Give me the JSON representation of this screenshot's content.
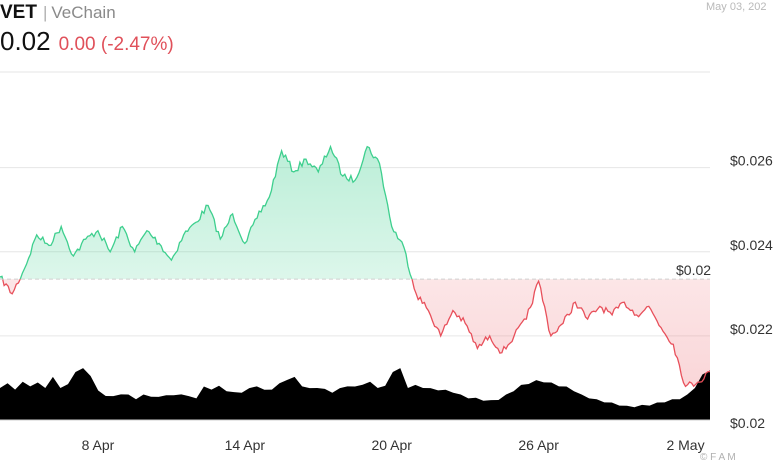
{
  "header": {
    "ticker": "VET",
    "separator": "|",
    "name": "VeChain",
    "price": "0.02",
    "change": "0.00 (-2.47%)",
    "date": "May 03, 202",
    "watermark": "© F A M"
  },
  "colors": {
    "up_line": "#3ecf8e",
    "up_fill": "#3ecf8e",
    "down_line": "#e8505b",
    "down_fill": "#f08a90",
    "volume": "#000000",
    "grid": "#e6e6e6",
    "baseline": "#cfcfcf",
    "axis_text": "#333333"
  },
  "chart_data": {
    "type": "area",
    "title": "",
    "xlabel": "",
    "ylabel": "",
    "x_ticks": [
      "8 Apr",
      "14 Apr",
      "20 Apr",
      "26 Apr",
      "2 May"
    ],
    "y_ticks": [
      "$0.026",
      "$0.024",
      "$0.022",
      "$0.02"
    ],
    "ylim": [
      0.02,
      0.0268
    ],
    "reference_line": {
      "label": "$0.02",
      "value": 0.02335
    },
    "x_range": [
      "2024-04-04",
      "2024-05-03"
    ],
    "series": [
      {
        "values": [
          [
            "2024-04-04",
            0.0234
          ],
          [
            "2024-04-04T12:00",
            0.023
          ],
          [
            "2024-04-05",
            0.0236
          ],
          [
            "2024-04-05T12:00",
            0.0244
          ],
          [
            "2024-04-06",
            0.02415
          ],
          [
            "2024-04-06T12:00",
            0.0246
          ],
          [
            "2024-04-07",
            0.0239
          ],
          [
            "2024-04-07T12:00",
            0.0243
          ],
          [
            "2024-04-08",
            0.0245
          ],
          [
            "2024-04-08T12:00",
            0.024
          ],
          [
            "2024-04-09",
            0.0246
          ],
          [
            "2024-04-09T12:00",
            0.024
          ],
          [
            "2024-04-10",
            0.0245
          ],
          [
            "2024-04-10T12:00",
            0.0242
          ],
          [
            "2024-04-11",
            0.0238
          ],
          [
            "2024-04-11T12:00",
            0.0244
          ],
          [
            "2024-04-12",
            0.0247
          ],
          [
            "2024-04-12T12:00",
            0.0251
          ],
          [
            "2024-04-13",
            0.0243
          ],
          [
            "2024-04-13T12:00",
            0.0249
          ],
          [
            "2024-04-14",
            0.0242
          ],
          [
            "2024-04-14T12:00",
            0.0248
          ],
          [
            "2024-04-15",
            0.0253
          ],
          [
            "2024-04-15T12:00",
            0.0264
          ],
          [
            "2024-04-16",
            0.0259
          ],
          [
            "2024-04-16T12:00",
            0.0262
          ],
          [
            "2024-04-17",
            0.0259
          ],
          [
            "2024-04-17T12:00",
            0.0265
          ],
          [
            "2024-04-18",
            0.0258
          ],
          [
            "2024-04-18T12:00",
            0.0257
          ],
          [
            "2024-04-19",
            0.0265
          ],
          [
            "2024-04-19T12:00",
            0.0261
          ],
          [
            "2024-04-20",
            0.0246
          ],
          [
            "2024-04-20T12:00",
            0.0241
          ],
          [
            "2024-04-21",
            0.023
          ],
          [
            "2024-04-21T12:00",
            0.0226
          ],
          [
            "2024-04-22",
            0.022
          ],
          [
            "2024-04-22T12:00",
            0.0226
          ],
          [
            "2024-04-23",
            0.0223
          ],
          [
            "2024-04-23T12:00",
            0.0217
          ],
          [
            "2024-04-24",
            0.022
          ],
          [
            "2024-04-24T12:00",
            0.0216
          ],
          [
            "2024-04-25",
            0.022
          ],
          [
            "2024-04-25T12:00",
            0.0224
          ],
          [
            "2024-04-26",
            0.0233
          ],
          [
            "2024-04-26T12:00",
            0.022
          ],
          [
            "2024-04-27",
            0.0223
          ],
          [
            "2024-04-27T12:00",
            0.0228
          ],
          [
            "2024-04-28",
            0.0224
          ],
          [
            "2024-04-28T12:00",
            0.0227
          ],
          [
            "2024-04-29",
            0.0225
          ],
          [
            "2024-04-29T12:00",
            0.0228
          ],
          [
            "2024-04-30",
            0.0225
          ],
          [
            "2024-04-30T12:00",
            0.0227
          ],
          [
            "2024-05-01",
            0.0222
          ],
          [
            "2024-05-01T12:00",
            0.0218
          ],
          [
            "2024-05-02",
            0.0208
          ],
          [
            "2024-05-02T12:00",
            0.0209
          ],
          [
            "2024-05-03",
            0.02115
          ]
        ]
      }
    ],
    "volume_profile": [
      0.4,
      0.44,
      0.38,
      0.46,
      0.42,
      0.45,
      0.4,
      0.52,
      0.4,
      0.43,
      0.6,
      0.63,
      0.55,
      0.35,
      0.3,
      0.28,
      0.32,
      0.3,
      0.26,
      0.3,
      0.29,
      0.27,
      0.31,
      0.29,
      0.32,
      0.28,
      0.27,
      0.4,
      0.38,
      0.41,
      0.36,
      0.33,
      0.34,
      0.38,
      0.42,
      0.36,
      0.38,
      0.44,
      0.5,
      0.52,
      0.42,
      0.38,
      0.4,
      0.37,
      0.34,
      0.38,
      0.42,
      0.4,
      0.44,
      0.46,
      0.4,
      0.41,
      0.6,
      0.63,
      0.4,
      0.42,
      0.4,
      0.38,
      0.37,
      0.36,
      0.34,
      0.3,
      0.27,
      0.26,
      0.24,
      0.23,
      0.25,
      0.3,
      0.36,
      0.42,
      0.45,
      0.48,
      0.47,
      0.45,
      0.42,
      0.4,
      0.36,
      0.3,
      0.27,
      0.24,
      0.22,
      0.2,
      0.18,
      0.16,
      0.16,
      0.17,
      0.18,
      0.2,
      0.22,
      0.24,
      0.26,
      0.3,
      0.4,
      0.55,
      0.62
    ]
  }
}
